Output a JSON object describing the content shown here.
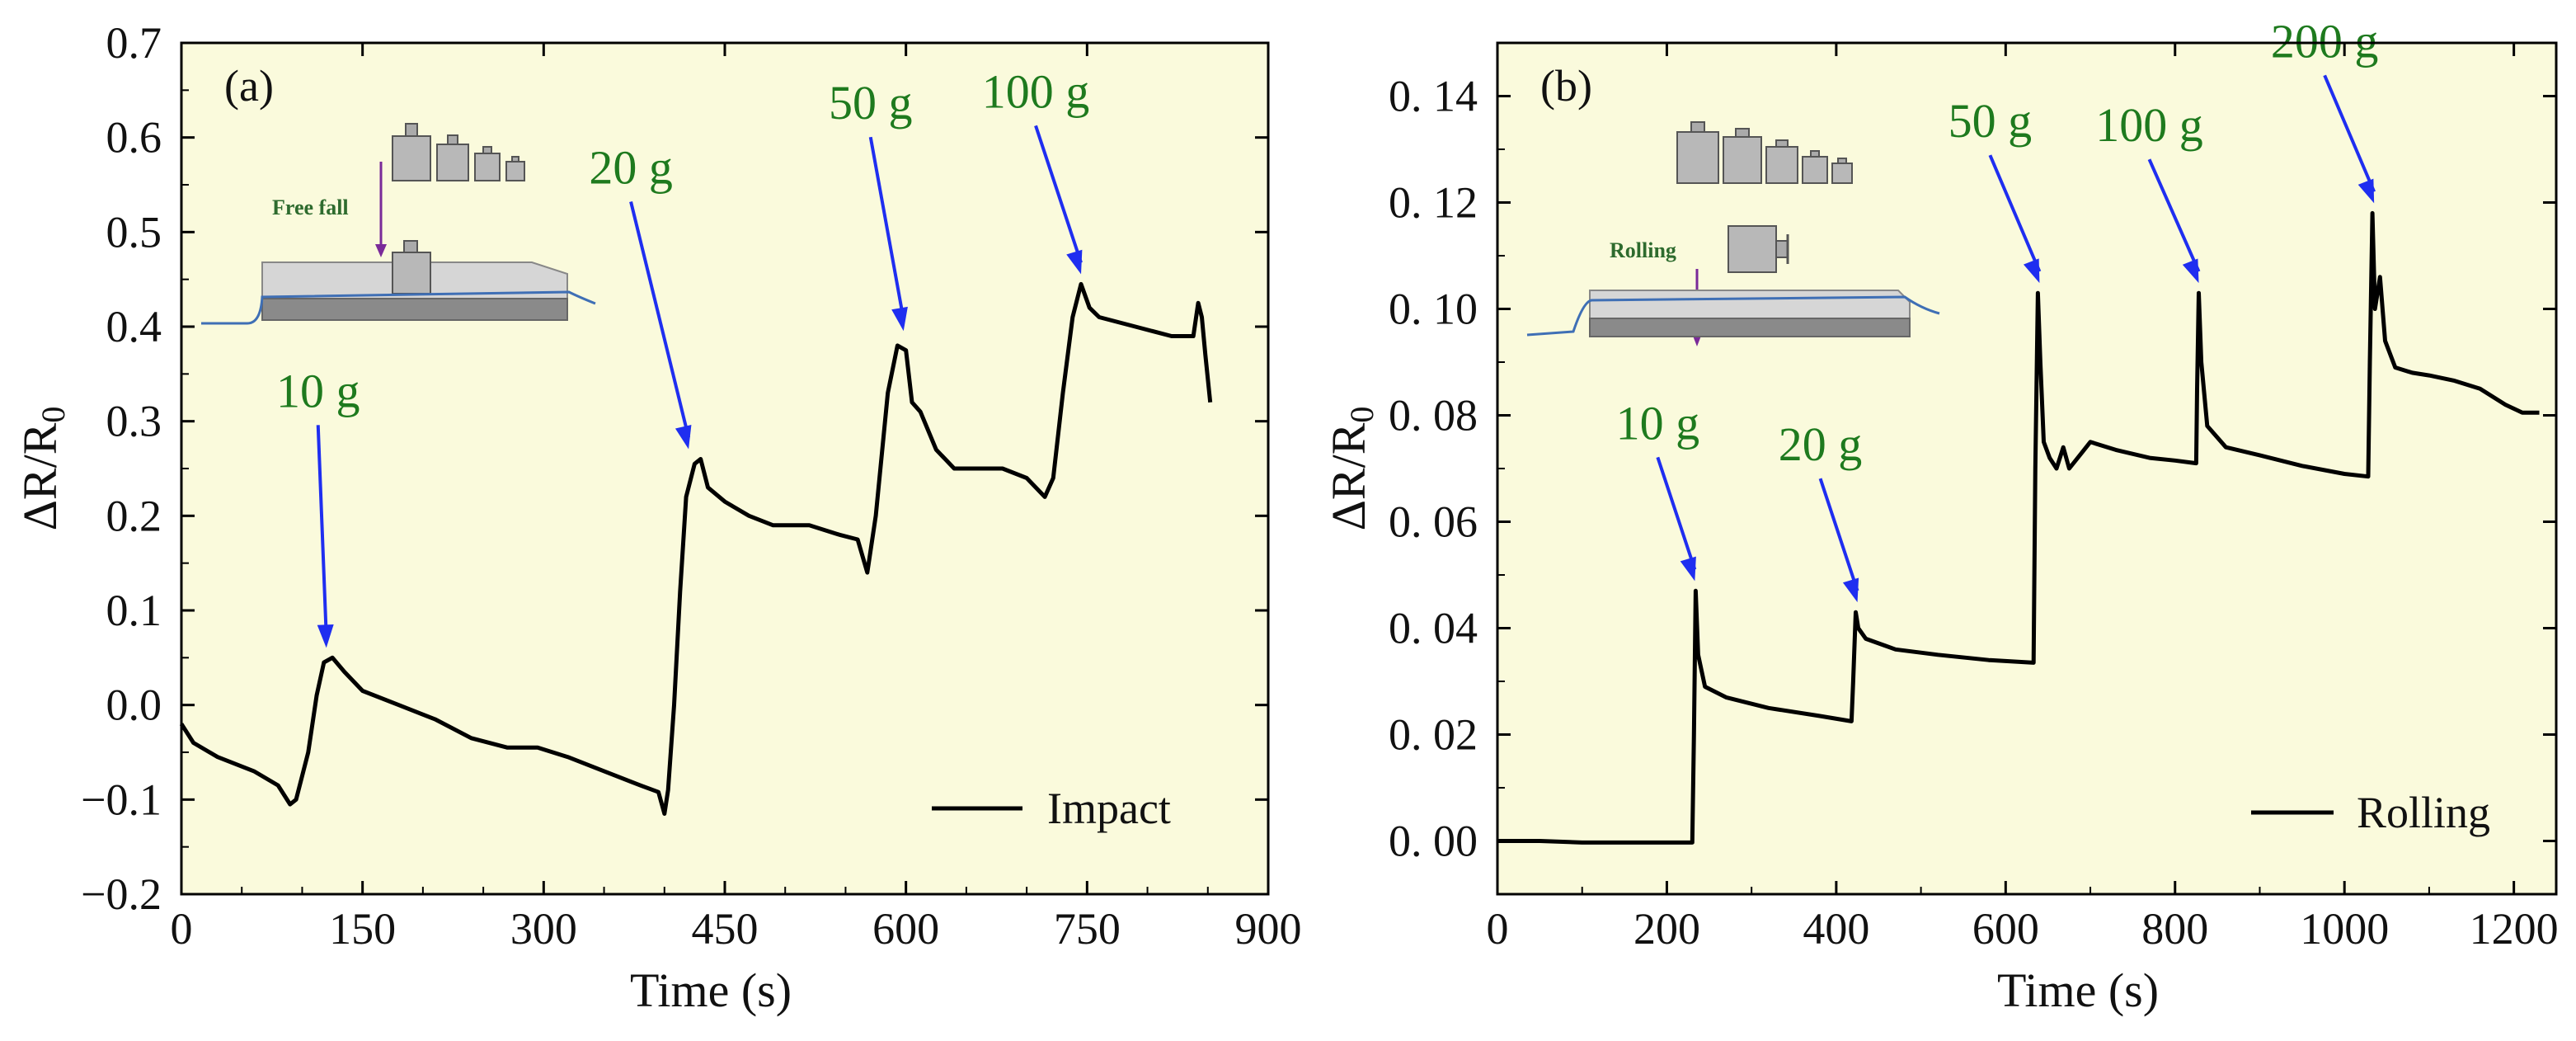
{
  "colors": {
    "plot_background": "#fafadc",
    "line": "#000000",
    "annotation_text": "#1e7a1e",
    "annotation_arrow": "#1f2ef0",
    "inset_arrow": "#7a2a99",
    "inset_label": "#2e6b2e"
  },
  "chart_data": [
    {
      "type": "line",
      "panel_label": "(a)",
      "xlabel": "Time (s)",
      "ylabel": "ΔR/R0",
      "xlim": [
        0,
        900
      ],
      "ylim": [
        -0.2,
        0.7
      ],
      "xticks": [
        0,
        150,
        300,
        450,
        600,
        750,
        900
      ],
      "xtick_labels": [
        "0",
        "150",
        "300",
        "450",
        "600",
        "750",
        "900"
      ],
      "yticks": [
        -0.2,
        -0.1,
        0.0,
        0.1,
        0.2,
        0.3,
        0.4,
        0.5,
        0.6,
        0.7
      ],
      "ytick_labels": [
        "−0.2",
        "−0.1",
        "0.0",
        "0.1",
        "0.2",
        "0.3",
        "0.4",
        "0.5",
        "0.6",
        "0.7"
      ],
      "legend": {
        "label": "Impact",
        "position": "bottom-right"
      },
      "inset_label": "Free fall",
      "annotations": [
        {
          "text": "10 g",
          "x": 120,
          "y": 0.05
        },
        {
          "text": "20 g",
          "x": 420,
          "y": 0.26
        },
        {
          "text": "50 g",
          "x": 598,
          "y": 0.385
        },
        {
          "text": "100 g",
          "x": 745,
          "y": 0.445
        }
      ],
      "series": [
        {
          "name": "Impact",
          "points": [
            [
              0,
              -0.02
            ],
            [
              10,
              -0.04
            ],
            [
              30,
              -0.055
            ],
            [
              60,
              -0.07
            ],
            [
              80,
              -0.085
            ],
            [
              90,
              -0.105
            ],
            [
              95,
              -0.1
            ],
            [
              105,
              -0.05
            ],
            [
              112,
              0.01
            ],
            [
              118,
              0.045
            ],
            [
              125,
              0.05
            ],
            [
              135,
              0.035
            ],
            [
              150,
              0.015
            ],
            [
              180,
              0.0
            ],
            [
              210,
              -0.015
            ],
            [
              240,
              -0.035
            ],
            [
              270,
              -0.045
            ],
            [
              295,
              -0.045
            ],
            [
              320,
              -0.055
            ],
            [
              350,
              -0.07
            ],
            [
              380,
              -0.085
            ],
            [
              395,
              -0.092
            ],
            [
              400,
              -0.115
            ],
            [
              403,
              -0.09
            ],
            [
              408,
              0.0
            ],
            [
              413,
              0.12
            ],
            [
              418,
              0.22
            ],
            [
              425,
              0.255
            ],
            [
              430,
              0.26
            ],
            [
              436,
              0.23
            ],
            [
              450,
              0.215
            ],
            [
              470,
              0.2
            ],
            [
              490,
              0.19
            ],
            [
              520,
              0.19
            ],
            [
              545,
              0.18
            ],
            [
              560,
              0.175
            ],
            [
              568,
              0.14
            ],
            [
              575,
              0.2
            ],
            [
              585,
              0.33
            ],
            [
              593,
              0.38
            ],
            [
              600,
              0.375
            ],
            [
              605,
              0.32
            ],
            [
              612,
              0.31
            ],
            [
              625,
              0.27
            ],
            [
              640,
              0.25
            ],
            [
              680,
              0.25
            ],
            [
              700,
              0.24
            ],
            [
              715,
              0.22
            ],
            [
              722,
              0.24
            ],
            [
              730,
              0.33
            ],
            [
              738,
              0.41
            ],
            [
              745,
              0.445
            ],
            [
              752,
              0.42
            ],
            [
              760,
              0.41
            ],
            [
              790,
              0.4
            ],
            [
              820,
              0.39
            ],
            [
              838,
              0.39
            ],
            [
              842,
              0.425
            ],
            [
              845,
              0.41
            ],
            [
              848,
              0.37
            ],
            [
              852,
              0.32
            ]
          ]
        }
      ]
    },
    {
      "type": "line",
      "panel_label": "(b)",
      "xlabel": "Time (s)",
      "ylabel": "ΔR/R0",
      "xlim": [
        0,
        1250
      ],
      "ylim": [
        -0.01,
        0.15
      ],
      "xticks": [
        0,
        200,
        400,
        600,
        800,
        1000,
        1200
      ],
      "xtick_labels": [
        "0",
        "200",
        "400",
        "600",
        "800",
        "1000",
        "1200"
      ],
      "yticks": [
        0.0,
        0.02,
        0.04,
        0.06,
        0.08,
        0.1,
        0.12,
        0.14
      ],
      "ytick_labels": [
        "0. 00",
        "0. 02",
        "0. 04",
        "0. 06",
        "0. 08",
        "0. 10",
        "0. 12",
        "0. 14"
      ],
      "legend": {
        "label": "Rolling",
        "position": "bottom-right"
      },
      "inset_label": "Rolling",
      "annotations": [
        {
          "text": "10 g",
          "x": 233,
          "y": 0.047
        },
        {
          "text": "20 g",
          "x": 425,
          "y": 0.043
        },
        {
          "text": "50 g",
          "x": 640,
          "y": 0.103
        },
        {
          "text": "100 g",
          "x": 828,
          "y": 0.103
        },
        {
          "text": "200 g",
          "x": 1035,
          "y": 0.118
        }
      ],
      "series": [
        {
          "name": "Rolling",
          "points": [
            [
              0,
              0.0
            ],
            [
              50,
              0.0
            ],
            [
              100,
              -0.0003
            ],
            [
              200,
              -0.0003
            ],
            [
              230,
              -0.0003
            ],
            [
              232,
              0.02
            ],
            [
              234,
              0.047
            ],
            [
              237,
              0.035
            ],
            [
              245,
              0.029
            ],
            [
              270,
              0.027
            ],
            [
              320,
              0.025
            ],
            [
              380,
              0.0235
            ],
            [
              418,
              0.0225
            ],
            [
              420,
              0.03
            ],
            [
              423,
              0.043
            ],
            [
              426,
              0.04
            ],
            [
              435,
              0.038
            ],
            [
              470,
              0.036
            ],
            [
              520,
              0.035
            ],
            [
              580,
              0.034
            ],
            [
              633,
              0.0335
            ],
            [
              635,
              0.07
            ],
            [
              638,
              0.103
            ],
            [
              641,
              0.09
            ],
            [
              645,
              0.075
            ],
            [
              652,
              0.072
            ],
            [
              660,
              0.07
            ],
            [
              668,
              0.074
            ],
            [
              675,
              0.07
            ],
            [
              690,
              0.073
            ],
            [
              700,
              0.075
            ],
            [
              730,
              0.0735
            ],
            [
              770,
              0.072
            ],
            [
              800,
              0.0715
            ],
            [
              825,
              0.071
            ],
            [
              826,
              0.085
            ],
            [
              828,
              0.103
            ],
            [
              831,
              0.09
            ],
            [
              838,
              0.078
            ],
            [
              860,
              0.074
            ],
            [
              900,
              0.0725
            ],
            [
              950,
              0.0705
            ],
            [
              1000,
              0.069
            ],
            [
              1028,
              0.0685
            ],
            [
              1030,
              0.09
            ],
            [
              1033,
              0.118
            ],
            [
              1036,
              0.1
            ],
            [
              1042,
              0.106
            ],
            [
              1048,
              0.094
            ],
            [
              1060,
              0.089
            ],
            [
              1080,
              0.088
            ],
            [
              1100,
              0.0875
            ],
            [
              1130,
              0.0865
            ],
            [
              1160,
              0.085
            ],
            [
              1190,
              0.082
            ],
            [
              1210,
              0.0805
            ],
            [
              1230,
              0.0805
            ]
          ]
        }
      ]
    }
  ]
}
